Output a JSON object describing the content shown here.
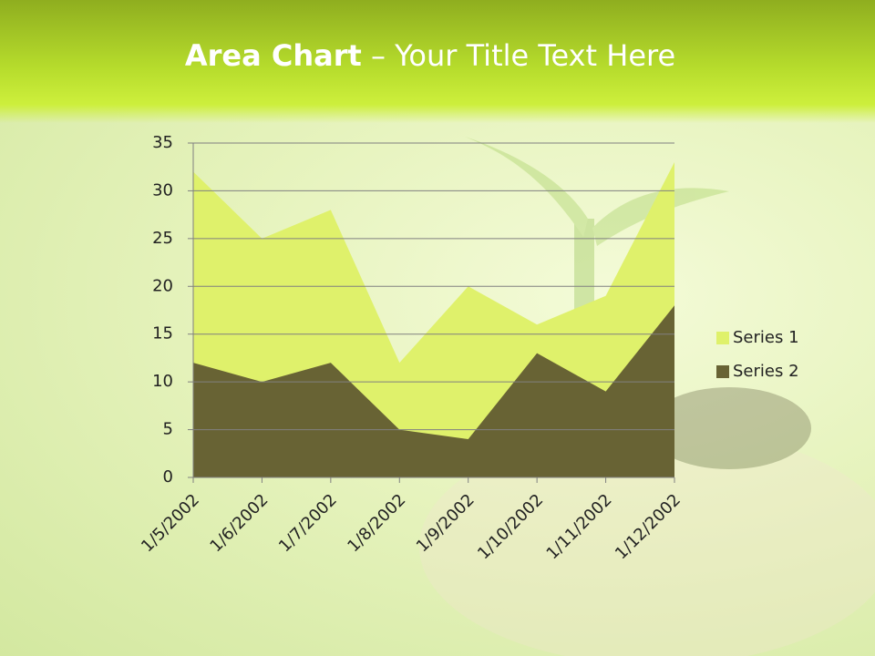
{
  "chart_data": {
    "type": "area",
    "title": {
      "bold": "Area Chart",
      "rest": "– Your Title Text Here"
    },
    "categories": [
      "1/5/2002",
      "1/6/2002",
      "1/7/2002",
      "1/8/2002",
      "1/9/2002",
      "1/10/2002",
      "1/11/2002",
      "1/12/2002"
    ],
    "series": [
      {
        "name": "Series 1",
        "color": "#dff16b",
        "values": [
          32,
          25,
          28,
          12,
          20,
          16,
          19,
          33
        ]
      },
      {
        "name": "Series 2",
        "color": "#686334",
        "values": [
          12,
          10,
          12,
          5,
          4,
          13,
          9,
          18
        ]
      }
    ],
    "ylim": [
      0,
      35
    ],
    "yticks": [
      0,
      5,
      10,
      15,
      20,
      25,
      30,
      35
    ],
    "grid": true,
    "legend": "right"
  }
}
